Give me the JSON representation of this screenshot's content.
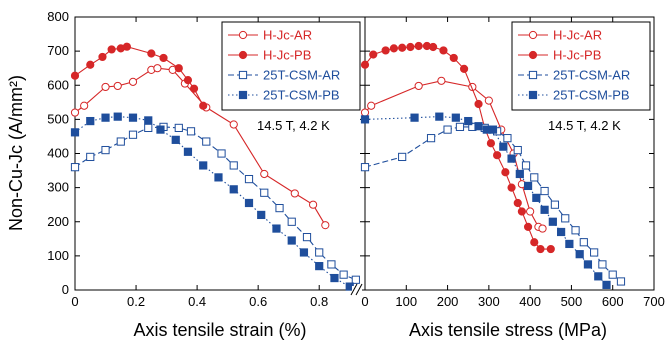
{
  "chart_data": [
    {
      "type": "line",
      "xlabel": "Axis tensile strain (%)",
      "ylabel": "Non-Cu-Jc (A/mm²)",
      "xlim": [
        0,
        0.95
      ],
      "ylim": [
        0,
        800
      ],
      "xticks": [
        "0",
        "0.2",
        "0.4",
        "0.6",
        "0.8"
      ],
      "xtick_values": [
        0,
        0.2,
        0.4,
        0.6,
        0.8
      ],
      "yticks": [
        "0",
        "100",
        "200",
        "300",
        "400",
        "500",
        "600",
        "700",
        "800"
      ],
      "annotation": "14.5 T, 4.2 K",
      "legend_position": "top-right",
      "series": [
        {
          "name": "H-Jc-AR",
          "color": "#d62728",
          "marker": "open-circle",
          "line": "solid",
          "x": [
            0,
            0.03,
            0.1,
            0.14,
            0.19,
            0.25,
            0.27,
            0.32,
            0.36,
            0.43,
            0.52,
            0.62,
            0.72,
            0.78,
            0.82
          ],
          "y": [
            520,
            540,
            595,
            598,
            610,
            645,
            650,
            645,
            605,
            535,
            485,
            340,
            283,
            250,
            190
          ]
        },
        {
          "name": "H-Jc-PB",
          "color": "#d62728",
          "marker": "filled-circle",
          "line": "solid",
          "x": [
            0,
            0.05,
            0.09,
            0.12,
            0.15,
            0.17,
            0.25,
            0.29,
            0.34,
            0.37,
            0.39,
            0.42
          ],
          "y": [
            628,
            660,
            683,
            705,
            708,
            713,
            693,
            680,
            650,
            615,
            590,
            540
          ]
        },
        {
          "name": "25T-CSM-AR",
          "color": "#1f4e9c",
          "marker": "open-square",
          "line": "dashed",
          "x": [
            0,
            0.05,
            0.1,
            0.15,
            0.19,
            0.24,
            0.29,
            0.34,
            0.38,
            0.43,
            0.48,
            0.52,
            0.57,
            0.62,
            0.67,
            0.71,
            0.76,
            0.8,
            0.84,
            0.88,
            0.92
          ],
          "y": [
            360,
            390,
            410,
            435,
            455,
            475,
            478,
            475,
            465,
            435,
            400,
            365,
            325,
            285,
            240,
            200,
            155,
            110,
            75,
            45,
            30
          ]
        },
        {
          "name": "25T-CSM-PB",
          "color": "#1f4e9c",
          "marker": "filled-square",
          "line": "dotted",
          "x": [
            0,
            0.05,
            0.1,
            0.14,
            0.19,
            0.24,
            0.28,
            0.33,
            0.37,
            0.42,
            0.47,
            0.52,
            0.57,
            0.61,
            0.66,
            0.71,
            0.75,
            0.8,
            0.85,
            0.9
          ],
          "y": [
            462,
            495,
            505,
            508,
            505,
            497,
            470,
            440,
            405,
            365,
            330,
            295,
            255,
            220,
            180,
            145,
            110,
            70,
            35,
            10
          ]
        }
      ]
    },
    {
      "type": "line",
      "xlabel": "Axis tensile stress (MPa)",
      "ylabel": "",
      "xlim": [
        0,
        700
      ],
      "ylim": [
        0,
        800
      ],
      "xticks": [
        "0",
        "100",
        "200",
        "300",
        "400",
        "500",
        "600",
        "700"
      ],
      "xtick_values": [
        0,
        100,
        200,
        300,
        400,
        500,
        600,
        700
      ],
      "annotation": "14.5 T, 4.2 K",
      "legend_position": "top-right",
      "series": [
        {
          "name": "H-Jc-AR",
          "color": "#d62728",
          "marker": "open-circle",
          "line": "solid",
          "x": [
            0,
            15,
            130,
            185,
            260,
            300,
            330,
            360,
            380,
            400,
            420,
            430
          ],
          "y": [
            520,
            540,
            598,
            613,
            595,
            555,
            470,
            400,
            310,
            230,
            185,
            180
          ]
        },
        {
          "name": "H-Jc-PB",
          "color": "#d62728",
          "marker": "filled-circle",
          "line": "solid",
          "x": [
            0,
            20,
            50,
            70,
            90,
            110,
            130,
            150,
            165,
            190,
            215,
            240,
            275,
            290,
            305,
            320,
            340,
            355,
            370,
            380,
            395,
            410,
            425,
            450
          ],
          "y": [
            660,
            690,
            702,
            708,
            710,
            712,
            715,
            715,
            712,
            702,
            680,
            648,
            545,
            475,
            430,
            395,
            345,
            300,
            255,
            230,
            185,
            140,
            120,
            120
          ]
        },
        {
          "name": "25T-CSM-AR",
          "color": "#1f4e9c",
          "marker": "open-square",
          "line": "dashed",
          "x": [
            0,
            90,
            160,
            200,
            230,
            260,
            290,
            320,
            345,
            370,
            390,
            410,
            435,
            460,
            485,
            510,
            530,
            555,
            575,
            600,
            620
          ],
          "y": [
            360,
            390,
            445,
            470,
            478,
            478,
            475,
            465,
            445,
            410,
            365,
            330,
            290,
            250,
            210,
            175,
            140,
            110,
            75,
            45,
            25
          ]
        },
        {
          "name": "25T-CSM-PB",
          "color": "#1f4e9c",
          "marker": "filled-square",
          "line": "dotted",
          "x": [
            0,
            120,
            180,
            220,
            250,
            275,
            295,
            310,
            335,
            355,
            375,
            395,
            415,
            435,
            455,
            475,
            495,
            520,
            540,
            565,
            585
          ],
          "y": [
            500,
            505,
            508,
            505,
            495,
            480,
            470,
            470,
            420,
            385,
            340,
            305,
            270,
            235,
            200,
            170,
            135,
            105,
            75,
            40,
            15
          ]
        }
      ]
    }
  ]
}
